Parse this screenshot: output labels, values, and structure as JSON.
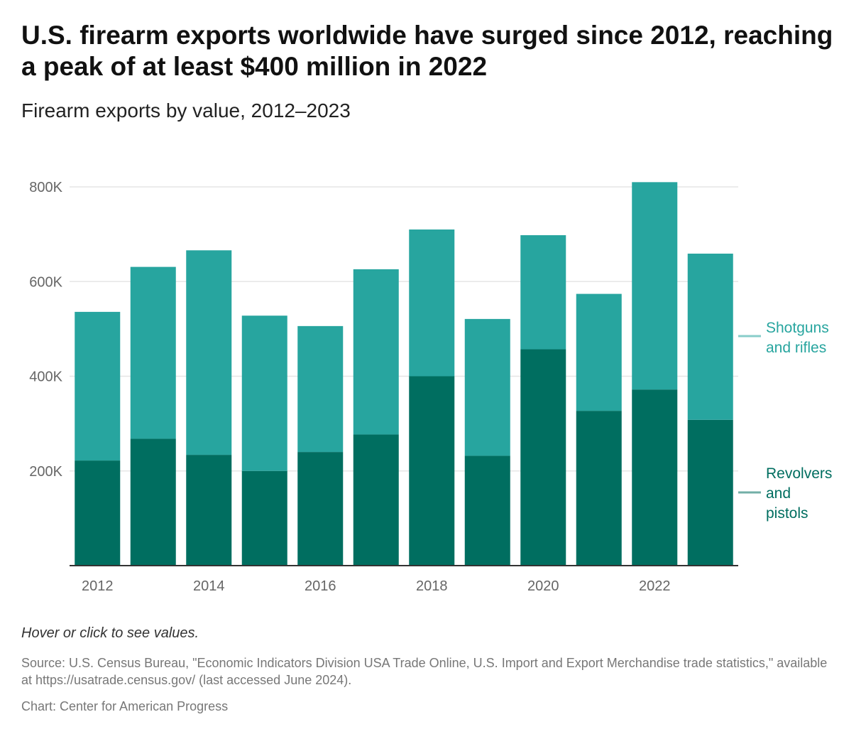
{
  "title": "U.S. firearm exports worldwide have surged since 2012, reaching a peak of at least $400 million in 2022",
  "subtitle": "Firearm exports by value, 2012–2023",
  "footer": {
    "hint": "Hover or click to see values.",
    "source": "Source: U.S. Census Bureau, \"Economic Indicators Division USA Trade Online, U.S. Import and Export Merchandise trade statistics,\" available at https://usatrade.census.gov/ (last accessed June 2024).",
    "credit": "Chart: Center for American Progress"
  },
  "colors": {
    "shotguns": "#27a59f",
    "revolvers": "#006e60",
    "grid": "#e6e6e6",
    "axis": "#333333"
  },
  "chart_data": {
    "type": "bar",
    "stacked": true,
    "categories": [
      2012,
      2013,
      2014,
      2015,
      2016,
      2017,
      2018,
      2019,
      2020,
      2021,
      2022,
      2023
    ],
    "x_tick_labels": [
      "2012",
      "2014",
      "2016",
      "2018",
      "2020",
      "2022"
    ],
    "y_ticks": [
      200000,
      400000,
      600000,
      800000
    ],
    "y_tick_labels": [
      "200K",
      "400K",
      "600K",
      "800K"
    ],
    "ylim": [
      0,
      800000
    ],
    "grid": true,
    "series": [
      {
        "name": "Revolvers and pistols",
        "legend_lines": [
          "Revolvers",
          "and",
          "pistols"
        ],
        "color": "#006e60",
        "values": [
          222000,
          268000,
          234000,
          200000,
          240000,
          277000,
          400000,
          232000,
          457000,
          327000,
          372000,
          308000
        ]
      },
      {
        "name": "Shotguns and rifles",
        "legend_lines": [
          "Shotguns",
          "and rifles"
        ],
        "color": "#27a59f",
        "values": [
          314000,
          363000,
          432000,
          328000,
          266000,
          349000,
          310000,
          289000,
          241000,
          247000,
          438000,
          351000
        ]
      }
    ],
    "legend_placement": "right"
  }
}
